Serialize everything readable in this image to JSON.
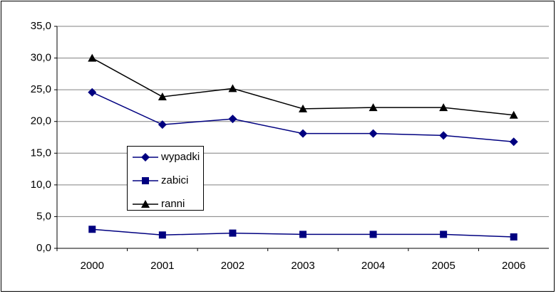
{
  "chart_data": {
    "type": "line",
    "categories": [
      "2000",
      "2001",
      "2002",
      "2003",
      "2004",
      "2005",
      "2006"
    ],
    "series": [
      {
        "name": "wypadki",
        "color": "#000080",
        "marker": "diamond",
        "values": [
          24.6,
          19.5,
          20.4,
          18.1,
          18.1,
          17.8,
          16.8
        ]
      },
      {
        "name": "zabici",
        "color": "#000080",
        "marker": "square",
        "values": [
          3.0,
          2.1,
          2.4,
          2.2,
          2.2,
          2.2,
          1.8
        ]
      },
      {
        "name": "ranni",
        "color": "#000000",
        "marker": "triangle",
        "values": [
          30.0,
          23.9,
          25.2,
          22.0,
          22.2,
          22.2,
          21.0
        ]
      }
    ],
    "ylim": [
      0,
      35
    ],
    "yticks": [
      {
        "value": 0,
        "label": "0,0"
      },
      {
        "value": 5,
        "label": "5,0"
      },
      {
        "value": 10,
        "label": "10,0"
      },
      {
        "value": 15,
        "label": "15,0"
      },
      {
        "value": 20,
        "label": "20,0"
      },
      {
        "value": 25,
        "label": "25,0"
      },
      {
        "value": 30,
        "label": "30,0"
      },
      {
        "value": 35,
        "label": "35,0"
      }
    ],
    "grid": true
  }
}
